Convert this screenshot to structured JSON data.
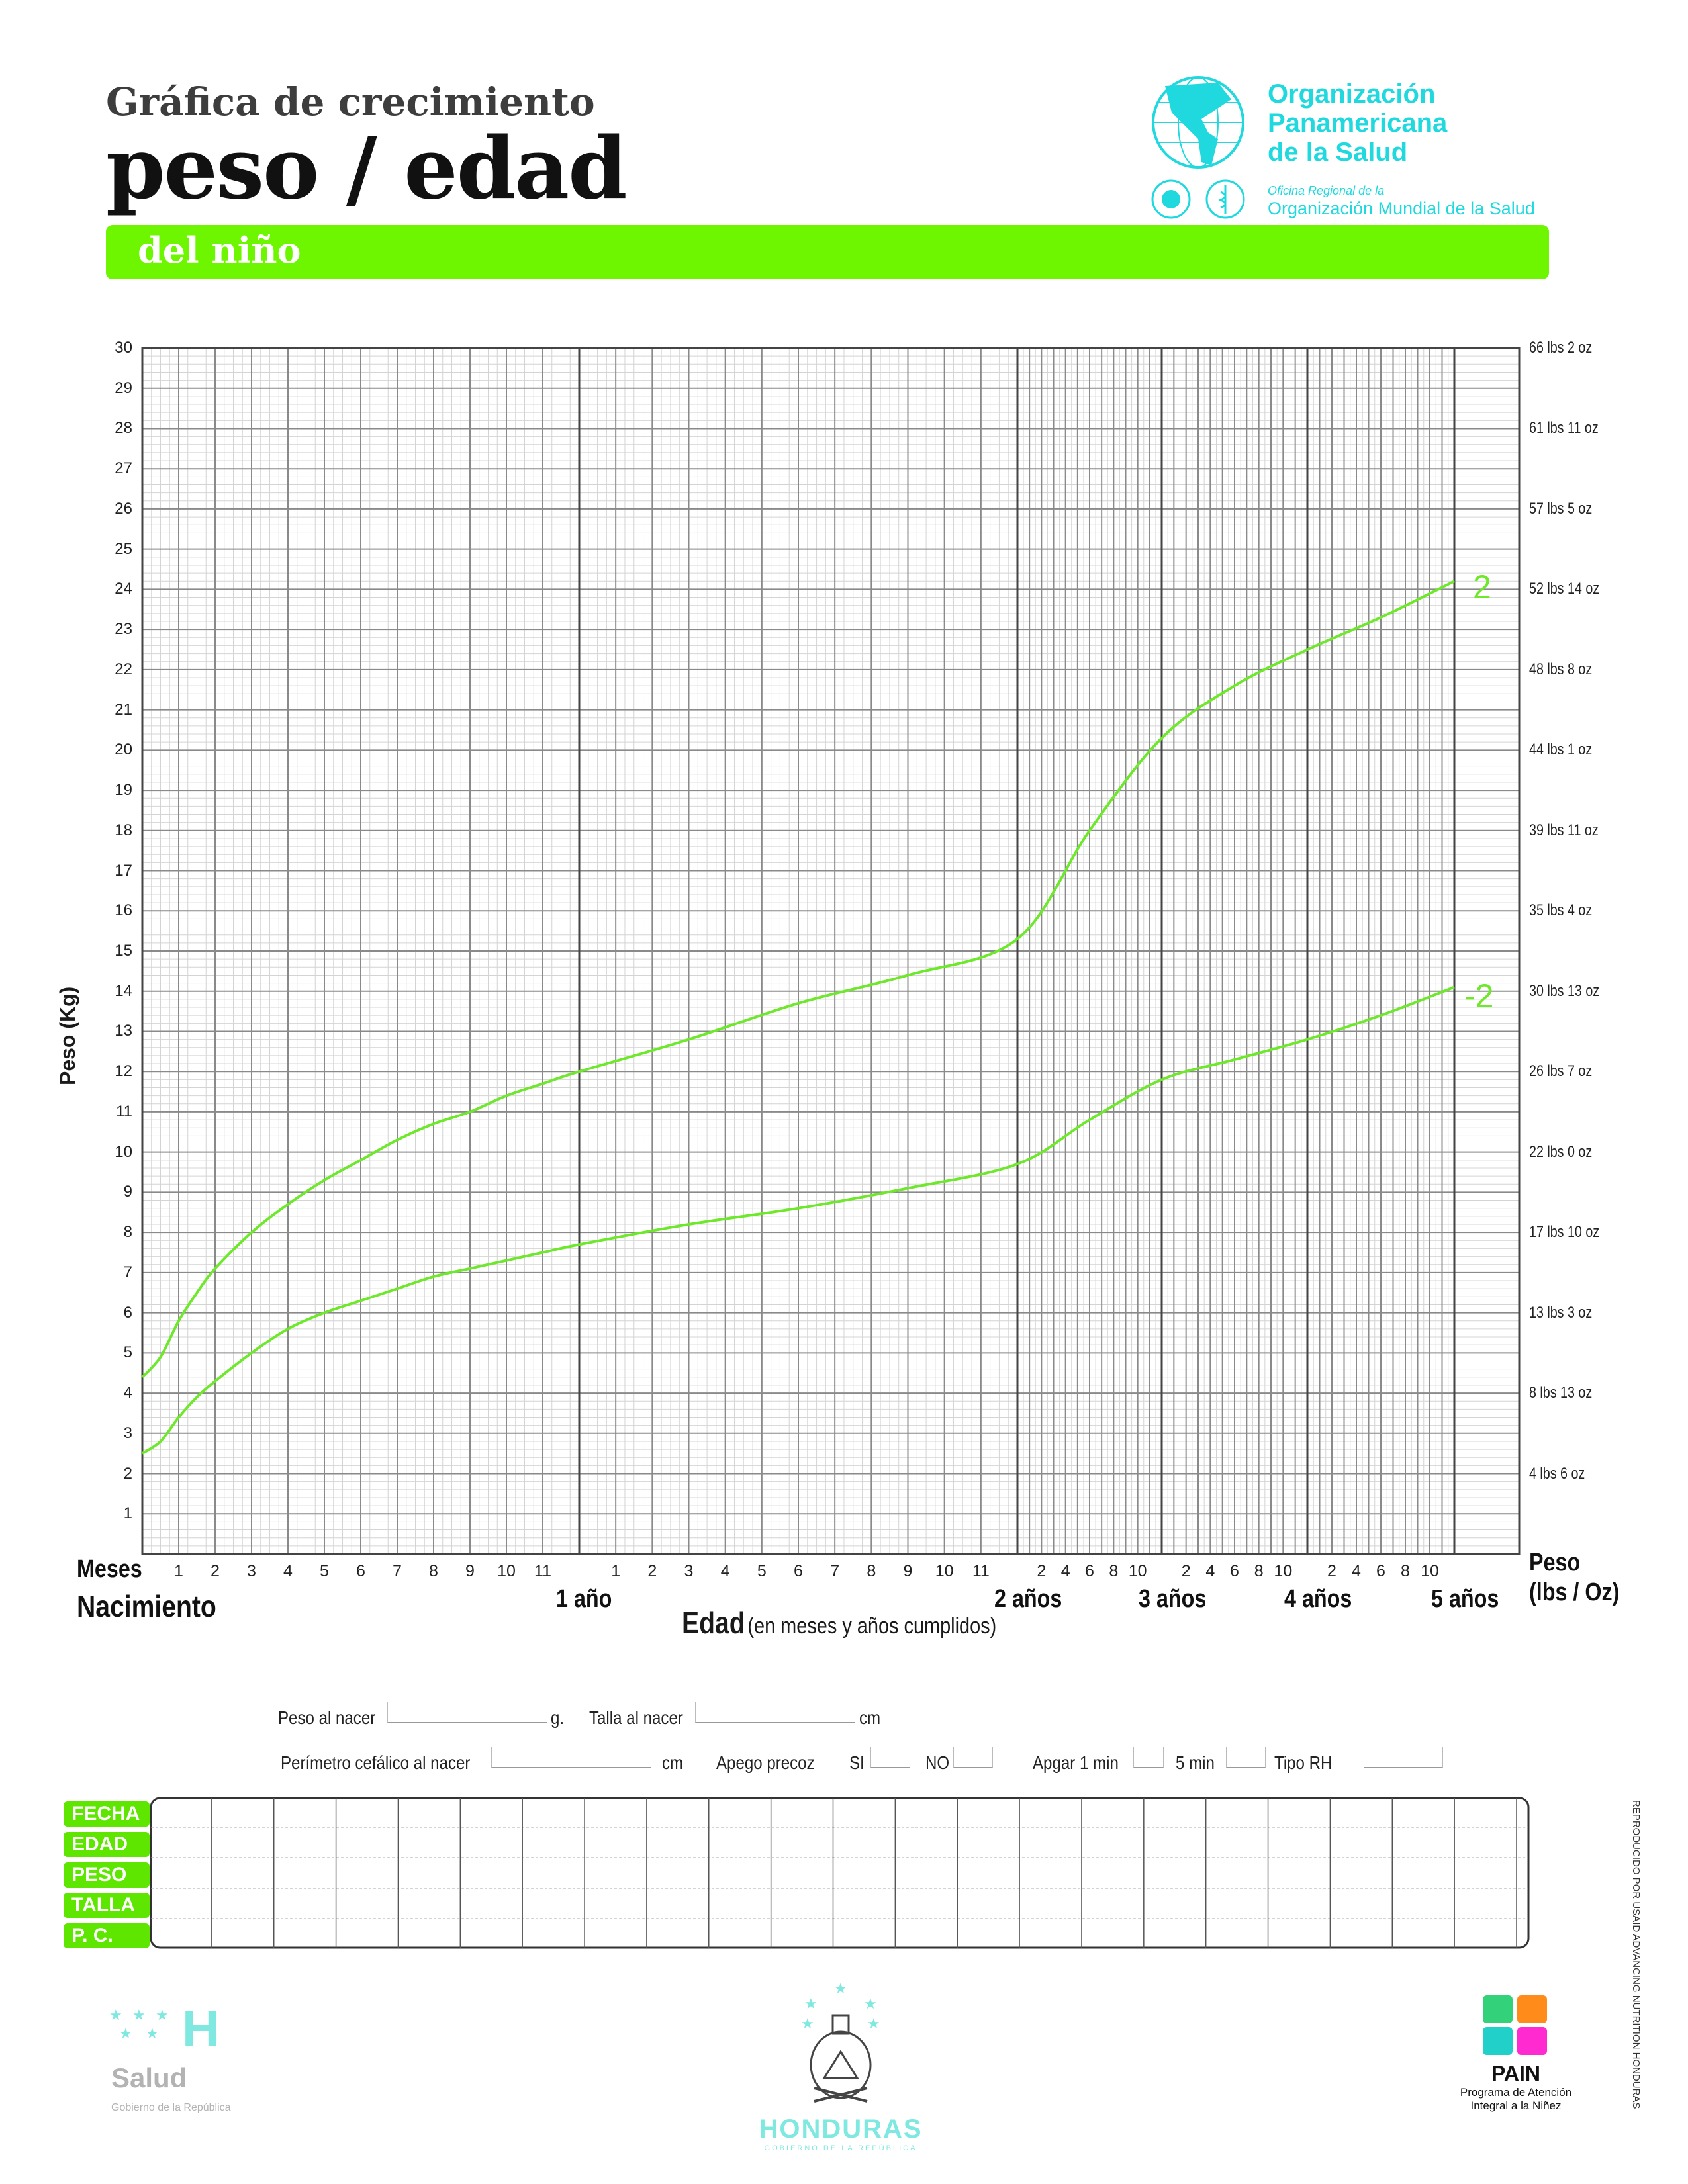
{
  "header": {
    "title_small": "Gráfica de crecimiento",
    "title_big": "peso / edad",
    "banner": "del niño"
  },
  "ops_logo": {
    "name_line1": "Organización",
    "name_line2": "Panamericana",
    "name_line3": "de la Salud",
    "office": "Oficina Regional de la",
    "org": "Organización Mundial de la Salud",
    "color": "#1fd9df"
  },
  "chart_labels": {
    "y_title": "Peso (Kg)",
    "right_title_1": "Peso",
    "right_title_2": "(lbs / Oz)",
    "meses": "Meses",
    "nacimiento": "Nacimiento",
    "x_title": "Edad",
    "x_title_sub": "(en meses y años cumplidos)",
    "year_labels": [
      "1 año",
      "2 años",
      "3 años",
      "4 años",
      "5 años"
    ],
    "month_ticks_first_year": [
      "1",
      "2",
      "3",
      "4",
      "5",
      "6",
      "7",
      "8",
      "9",
      "10",
      "11"
    ],
    "month_ticks_second_year": [
      "1",
      "2",
      "3",
      "4",
      "5",
      "6",
      "7",
      "8",
      "9",
      "10",
      "11"
    ],
    "bimonth_ticks": [
      "2",
      "4",
      "6",
      "8",
      "10"
    ],
    "right_axis": [
      "66 lbs 2 oz",
      "61 lbs 11 oz",
      "57 lbs 5 oz",
      "52 lbs 14 oz",
      "48 lbs 8 oz",
      "44 lbs 1 oz",
      "39 lbs 11 oz",
      "35 lbs 4 oz",
      "30 lbs 13 oz",
      "26 lbs 7 oz",
      "22 lbs 0 oz",
      "17 lbs 10 oz",
      "13 lbs 3 oz",
      "8 lbs 13 oz",
      "4 lbs 6 oz"
    ],
    "sd_upper": "2",
    "sd_lower": "-2"
  },
  "chart_data": {
    "type": "line",
    "xlabel": "Edad (en meses y años cumplidos)",
    "ylabel": "Peso (Kg)",
    "x_unit": "months",
    "xlim": [
      0,
      60
    ],
    "ylim": [
      0,
      30
    ],
    "yticks": [
      1,
      2,
      3,
      4,
      5,
      6,
      7,
      8,
      9,
      10,
      11,
      12,
      13,
      14,
      15,
      16,
      17,
      18,
      19,
      20,
      21,
      22,
      23,
      24,
      25,
      26,
      27,
      28,
      29,
      30
    ],
    "grid": true,
    "series": [
      {
        "name": "2",
        "color": "#6ee82a",
        "x": [
          0,
          0.5,
          1,
          1.5,
          2,
          3,
          4,
          5,
          6,
          7,
          8,
          9,
          10,
          11,
          12,
          15,
          18,
          21,
          24,
          30,
          36,
          42,
          48,
          54,
          60
        ],
        "y": [
          4.4,
          4.9,
          5.8,
          6.5,
          7.1,
          8.0,
          8.7,
          9.3,
          9.8,
          10.3,
          10.7,
          11.0,
          11.4,
          11.7,
          12.0,
          12.8,
          13.7,
          14.4,
          15.3,
          18.0,
          20.3,
          21.6,
          22.5,
          23.3,
          24.2
        ]
      },
      {
        "name": "-2",
        "color": "#6ee82a",
        "x": [
          0,
          0.5,
          1,
          1.5,
          2,
          3,
          4,
          5,
          6,
          7,
          8,
          9,
          10,
          11,
          12,
          15,
          18,
          21,
          24,
          30,
          36,
          42,
          48,
          54,
          60
        ],
        "y": [
          2.5,
          2.8,
          3.4,
          3.9,
          4.3,
          5.0,
          5.6,
          6.0,
          6.3,
          6.6,
          6.9,
          7.1,
          7.3,
          7.5,
          7.7,
          8.2,
          8.6,
          9.1,
          9.7,
          10.8,
          11.8,
          12.3,
          12.8,
          13.4,
          14.1
        ]
      }
    ]
  },
  "form": {
    "peso_nacer": "Peso al nacer",
    "peso_unit": "g.",
    "talla_nacer": "Talla al nacer",
    "talla_unit": "cm",
    "perimetro": "Perímetro cefálico al nacer",
    "perimetro_unit": "cm",
    "apego": "Apego precoz",
    "si": "SI",
    "no": "NO",
    "apgar": "Apgar  1 min",
    "cinco_min": "5 min",
    "tipo_rh": "Tipo RH"
  },
  "record_table": {
    "rows": [
      "FECHA",
      "EDAD",
      "PESO",
      "TALLA",
      "P. C."
    ],
    "columns": 22
  },
  "side_note": "REPRODUCIDO POR USAID ADVANCING NUTRITION HONDURAS",
  "footer": {
    "salud_letter": "H",
    "salud": "Salud",
    "salud_sub": "Gobierno de la República",
    "honduras": "HONDURAS",
    "honduras_sub": "GOBIERNO DE LA REPÚBLICA",
    "pain": "PAIN",
    "pain_line1": "Programa de Atención",
    "pain_line2": "Integral a la Niñez"
  }
}
